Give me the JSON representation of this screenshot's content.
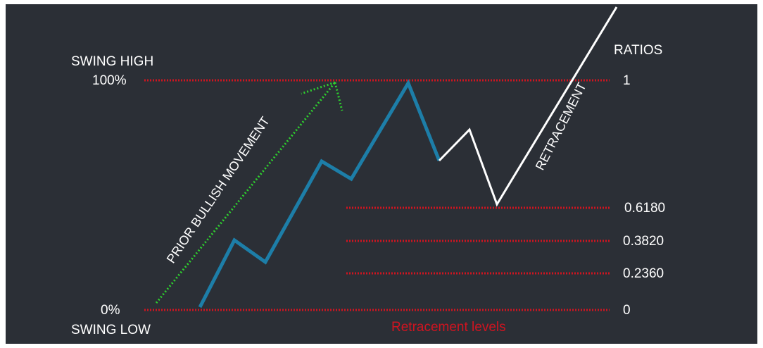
{
  "labels": {
    "swing_high": "SWING HIGH",
    "swing_low": "SWING LOW",
    "pct_high": "100%",
    "pct_low": "0%",
    "ratios_title": "RATIOS",
    "prior_move": "PRIOR BULLISH MOVEMENT",
    "retracement": "RETRACEMENT",
    "levels_caption": "Retracement levels"
  },
  "ratios": [
    "1",
    "0.6180",
    "0.3820",
    "0.2360",
    "0"
  ],
  "colors": {
    "background": "#2b2f36",
    "level_line": "#d01420",
    "up_move": "#1d7ea8",
    "retracement_path": "#ffffff",
    "prior_arrow": "#2fcf2f",
    "text": "#ffffff"
  }
}
